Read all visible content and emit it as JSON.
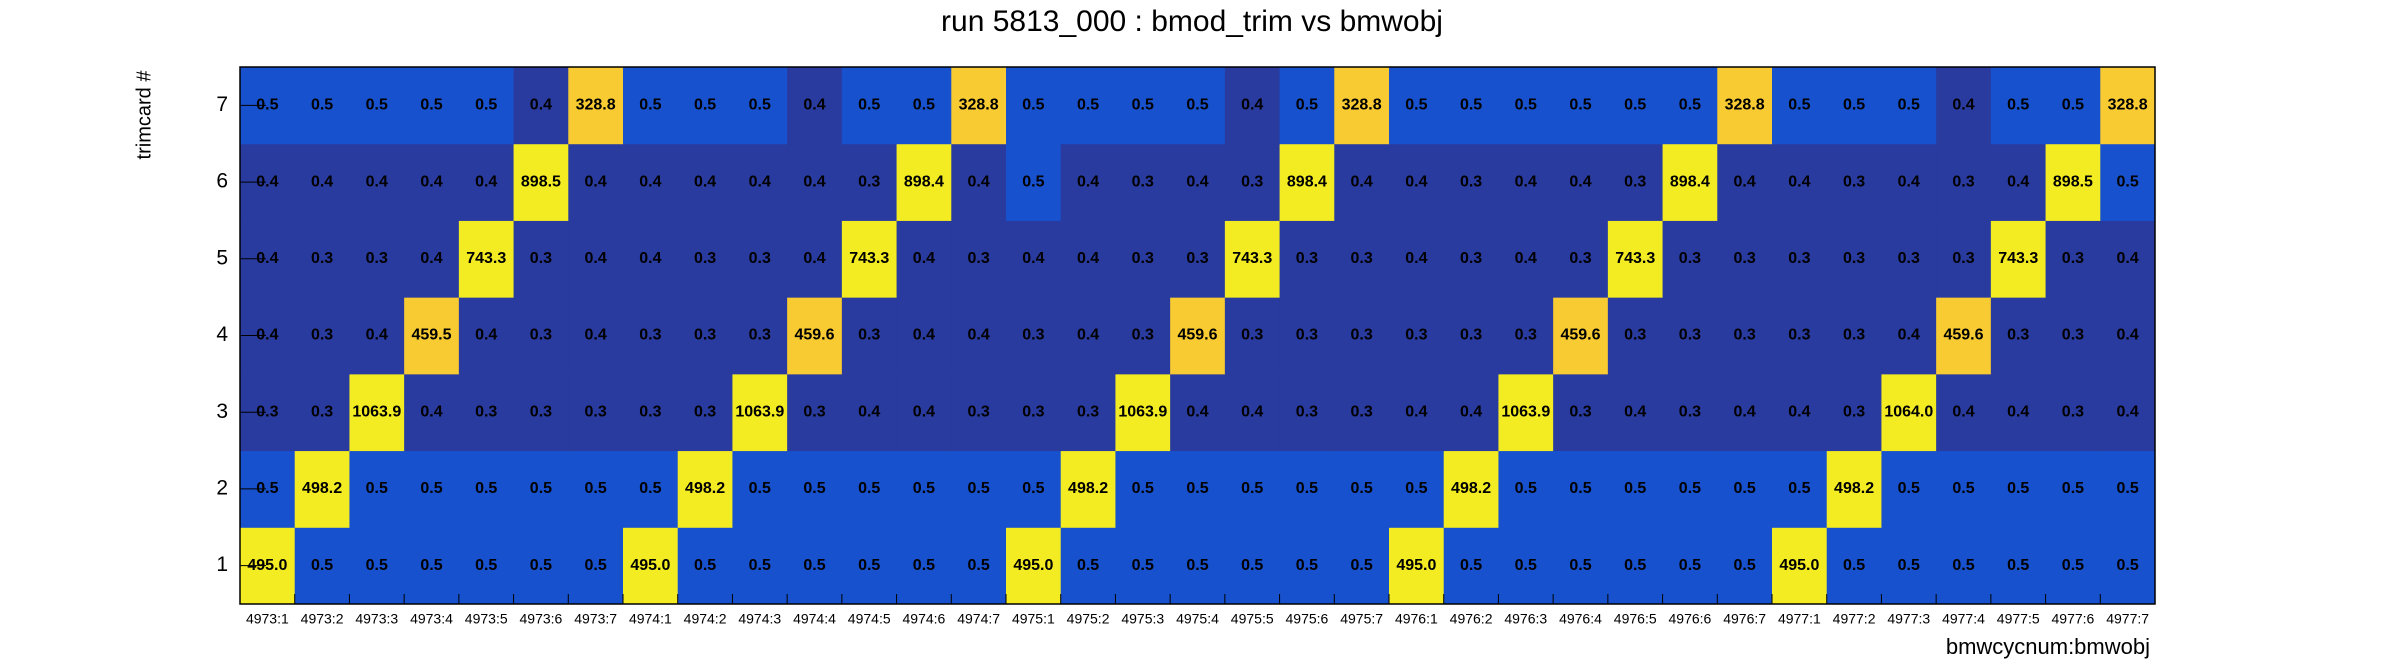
{
  "chart_data": {
    "type": "heatmap",
    "title": "run 5813_000 : bmod_trim vs bmwobj",
    "x_label": "bmwcycnum:bmwobj",
    "y_label": "trimcard #",
    "categories": [
      "4973:1",
      "4973:2",
      "4973:3",
      "4973:4",
      "4973:5",
      "4973:6",
      "4973:7",
      "4974:1",
      "4974:2",
      "4974:3",
      "4974:4",
      "4974:5",
      "4974:6",
      "4974:7",
      "4975:1",
      "4975:2",
      "4975:3",
      "4975:4",
      "4975:5",
      "4975:6",
      "4975:7",
      "4976:1",
      "4976:2",
      "4976:3",
      "4976:4",
      "4976:5",
      "4976:6",
      "4976:7",
      "4977:1",
      "4977:2",
      "4977:3",
      "4977:4",
      "4977:5",
      "4977:6",
      "4977:7"
    ],
    "y_categories": [
      1,
      2,
      3,
      4,
      5,
      6,
      7
    ],
    "z_scale": "log",
    "palette": [
      "#293b9f",
      "#1851cd",
      "#f8cb32",
      "#f4ec22"
    ],
    "values": [
      [
        495.0,
        0.5,
        0.5,
        0.5,
        0.5,
        0.5,
        0.5,
        495.0,
        0.5,
        0.5,
        0.5,
        0.5,
        0.5,
        0.5,
        495.0,
        0.5,
        0.5,
        0.5,
        0.5,
        0.5,
        0.5,
        495.0,
        0.5,
        0.5,
        0.5,
        0.5,
        0.5,
        0.5,
        495.0,
        0.5,
        0.5,
        0.5,
        0.5,
        0.5,
        0.5
      ],
      [
        0.5,
        498.2,
        0.5,
        0.5,
        0.5,
        0.5,
        0.5,
        0.5,
        498.2,
        0.5,
        0.5,
        0.5,
        0.5,
        0.5,
        0.5,
        498.2,
        0.5,
        0.5,
        0.5,
        0.5,
        0.5,
        0.5,
        498.2,
        0.5,
        0.5,
        0.5,
        0.5,
        0.5,
        0.5,
        498.2,
        0.5,
        0.5,
        0.5,
        0.5,
        0.5
      ],
      [
        0.3,
        0.3,
        1063.9,
        0.4,
        0.3,
        0.3,
        0.3,
        0.3,
        0.3,
        1063.9,
        0.3,
        0.4,
        0.4,
        0.3,
        0.3,
        0.3,
        1063.9,
        0.4,
        0.4,
        0.3,
        0.3,
        0.4,
        0.4,
        1063.9,
        0.3,
        0.4,
        0.3,
        0.4,
        0.4,
        0.3,
        1064.0,
        0.4,
        0.4,
        0.3,
        0.4
      ],
      [
        0.4,
        0.3,
        0.4,
        459.5,
        0.4,
        0.3,
        0.4,
        0.3,
        0.3,
        0.3,
        459.6,
        0.3,
        0.4,
        0.4,
        0.3,
        0.4,
        0.3,
        459.6,
        0.3,
        0.3,
        0.3,
        0.3,
        0.3,
        0.3,
        459.6,
        0.3,
        0.3,
        0.3,
        0.3,
        0.3,
        0.4,
        459.6,
        0.3,
        0.3,
        0.4
      ],
      [
        0.4,
        0.3,
        0.3,
        0.4,
        743.3,
        0.3,
        0.4,
        0.4,
        0.3,
        0.3,
        0.4,
        743.3,
        0.4,
        0.3,
        0.4,
        0.4,
        0.3,
        0.3,
        743.3,
        0.3,
        0.3,
        0.4,
        0.3,
        0.4,
        0.3,
        743.3,
        0.3,
        0.3,
        0.3,
        0.3,
        0.3,
        0.3,
        743.3,
        0.3,
        0.4
      ],
      [
        0.4,
        0.4,
        0.4,
        0.4,
        0.4,
        898.5,
        0.4,
        0.4,
        0.4,
        0.4,
        0.4,
        0.3,
        898.4,
        0.4,
        0.5,
        0.4,
        0.3,
        0.4,
        0.3,
        898.4,
        0.4,
        0.4,
        0.3,
        0.4,
        0.4,
        0.3,
        898.4,
        0.4,
        0.4,
        0.3,
        0.4,
        0.3,
        0.4,
        898.5,
        0.5
      ],
      [
        0.5,
        0.5,
        0.5,
        0.5,
        0.5,
        0.4,
        328.8,
        0.5,
        0.5,
        0.5,
        0.4,
        0.5,
        0.5,
        328.8,
        0.5,
        0.5,
        0.5,
        0.5,
        0.4,
        0.5,
        328.8,
        0.5,
        0.5,
        0.5,
        0.5,
        0.5,
        0.5,
        328.8,
        0.5,
        0.5,
        0.5,
        0.4,
        0.5,
        0.5,
        328.8
      ]
    ],
    "value_labels": [
      [
        "495.0",
        "0.5",
        "0.5",
        "0.5",
        "0.5",
        "0.5",
        "0.5",
        "495.0",
        "0.5",
        "0.5",
        "0.5",
        "0.5",
        "0.5",
        "0.5",
        "495.0",
        "0.5",
        "0.5",
        "0.5",
        "0.5",
        "0.5",
        "0.5",
        "495.0",
        "0.5",
        "0.5",
        "0.5",
        "0.5",
        "0.5",
        "0.5",
        "495.0",
        "0.5",
        "0.5",
        "0.5",
        "0.5",
        "0.5",
        "0.5"
      ],
      [
        "0.5",
        "498.2",
        "0.5",
        "0.5",
        "0.5",
        "0.5",
        "0.5",
        "0.5",
        "498.2",
        "0.5",
        "0.5",
        "0.5",
        "0.5",
        "0.5",
        "0.5",
        "498.2",
        "0.5",
        "0.5",
        "0.5",
        "0.5",
        "0.5",
        "0.5",
        "498.2",
        "0.5",
        "0.5",
        "0.5",
        "0.5",
        "0.5",
        "0.5",
        "498.2",
        "0.5",
        "0.5",
        "0.5",
        "0.5",
        "0.5"
      ],
      [
        "0.3",
        "0.3",
        "1063.9",
        "0.4",
        "0.3",
        "0.3",
        "0.3",
        "0.3",
        "0.3",
        "1063.9",
        "0.3",
        "0.4",
        "0.4",
        "0.3",
        "0.3",
        "0.3",
        "1063.9",
        "0.4",
        "0.4",
        "0.3",
        "0.3",
        "0.4",
        "0.4",
        "1063.9",
        "0.3",
        "0.4",
        "0.3",
        "0.4",
        "0.4",
        "0.3",
        "1064.0",
        "0.4",
        "0.4",
        "0.3",
        "0.4"
      ],
      [
        "0.4",
        "0.3",
        "0.4",
        "459.5",
        "0.4",
        "0.3",
        "0.4",
        "0.3",
        "0.3",
        "0.3",
        "459.6",
        "0.3",
        "0.4",
        "0.4",
        "0.3",
        "0.4",
        "0.3",
        "459.6",
        "0.3",
        "0.3",
        "0.3",
        "0.3",
        "0.3",
        "0.3",
        "459.6",
        "0.3",
        "0.3",
        "0.3",
        "0.3",
        "0.3",
        "0.4",
        "459.6",
        "0.3",
        "0.3",
        "0.4"
      ],
      [
        "0.4",
        "0.3",
        "0.3",
        "0.4",
        "743.3",
        "0.3",
        "0.4",
        "0.4",
        "0.3",
        "0.3",
        "0.4",
        "743.3",
        "0.4",
        "0.3",
        "0.4",
        "0.4",
        "0.3",
        "0.3",
        "743.3",
        "0.3",
        "0.3",
        "0.4",
        "0.3",
        "0.4",
        "0.3",
        "743.3",
        "0.3",
        "0.3",
        "0.3",
        "0.3",
        "0.3",
        "0.3",
        "743.3",
        "0.3",
        "0.4"
      ],
      [
        "0.4",
        "0.4",
        "0.4",
        "0.4",
        "0.4",
        "898.5",
        "0.4",
        "0.4",
        "0.4",
        "0.4",
        "0.4",
        "0.3",
        "898.4",
        "0.4",
        "0.5",
        "0.4",
        "0.3",
        "0.4",
        "0.3",
        "898.4",
        "0.4",
        "0.4",
        "0.3",
        "0.4",
        "0.4",
        "0.3",
        "898.4",
        "0.4",
        "0.4",
        "0.3",
        "0.4",
        "0.3",
        "0.4",
        "898.5",
        "0.5"
      ],
      [
        "0.5",
        "0.5",
        "0.5",
        "0.5",
        "0.5",
        "0.4",
        "328.8",
        "0.5",
        "0.5",
        "0.5",
        "0.4",
        "0.5",
        "0.5",
        "328.8",
        "0.5",
        "0.5",
        "0.5",
        "0.5",
        "0.4",
        "0.5",
        "328.8",
        "0.5",
        "0.5",
        "0.5",
        "0.5",
        "0.5",
        "0.5",
        "328.8",
        "0.5",
        "0.5",
        "0.5",
        "0.4",
        "0.5",
        "0.5",
        "328.8"
      ]
    ]
  }
}
